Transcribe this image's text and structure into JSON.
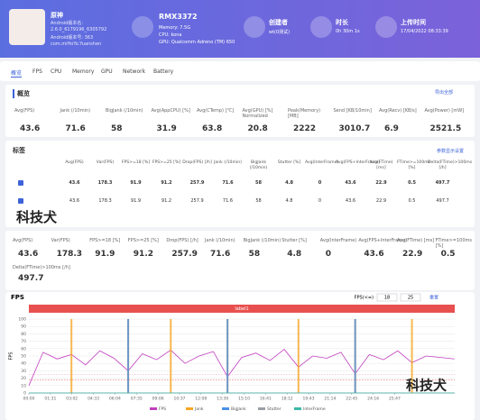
{
  "header": {
    "app": {
      "lines": [
        "原神",
        "Android版本名:",
        "2.6.0_6179196_6305792",
        "Android版本号: 363",
        "com.miHoYo.Yuanshen"
      ]
    },
    "device": {
      "model": "RMX3372",
      "lines": [
        "Memory: 7.5G",
        "CPU: kona",
        "GPU: Qualcomm Adreno (TM) 650"
      ]
    },
    "creator": {
      "label": "创建者",
      "value": "wt(0测试)"
    },
    "duration": {
      "label": "时长",
      "value": "0h 30m 1s"
    },
    "upload": {
      "label": "上传时间",
      "value": "17/04/2022 08:33:39"
    }
  },
  "tabs": [
    "概览",
    "FPS",
    "CPU",
    "Memory",
    "GPU",
    "Network",
    "Battery"
  ],
  "overview": {
    "title": "概览",
    "export": "导出全部",
    "metrics": [
      {
        "label": "Avg(FPS)",
        "value": 43.6
      },
      {
        "label": "Jank (/10min)",
        "value": 71.6
      },
      {
        "label": "BigJank (/10min)",
        "value": 58
      },
      {
        "label": "Avg(AppCPU) [%]",
        "value": 31.9
      },
      {
        "label": "Avg(CTemp) [℃]",
        "value": 63.8
      },
      {
        "label": "Avg(GPU) [%] Normalized",
        "value": 20.8
      },
      {
        "label": "Peak(Memory) [MB]",
        "value": 2222
      },
      {
        "label": "Send [KB/10min]",
        "value": 3010.7
      },
      {
        "label": "Avg(Recv) [KB/s]",
        "value": 6.9
      },
      {
        "label": "Avg(Power) [mW]",
        "value": 2521.5
      }
    ]
  },
  "tags": {
    "title": "标签",
    "link": "参数显示设置",
    "columns": [
      "Avg(FPS)",
      "Var(FPS)",
      "FPS>=18 [%]",
      "FPS>=25 [%]",
      "Drop(FPS) [/h]",
      "Jank (/10min)",
      "BigJank (/10min)",
      "Stutter [%]",
      "Avg(InterFrame)",
      "Avg(FPS+InterFrame)",
      "Avg(FTime) [ms]",
      "FTime>=100ms [%]",
      "Delta(FTime)>100ms [/h]"
    ],
    "rows": [
      [
        43.6,
        178.3,
        91.9,
        91.2,
        257.9,
        71.6,
        58,
        4.8,
        0,
        43.6,
        22.9,
        0.5,
        497.7
      ],
      [
        43.6,
        178.3,
        91.9,
        91.2,
        257.9,
        71.6,
        58,
        4.8,
        0,
        43.6,
        22.9,
        0.5,
        497.7
      ]
    ]
  },
  "summary": [
    {
      "label": "Avg(FPS)",
      "value": 43.6
    },
    {
      "label": "Var(FPS)",
      "value": 178.3
    },
    {
      "label": "FPS>=18 [%]",
      "value": 91.9
    },
    {
      "label": "FPS>=25 [%]",
      "value": 91.2
    },
    {
      "label": "Drop(FPS) [/h]",
      "value": 257.9
    },
    {
      "label": "Jank (/10min)",
      "value": 71.6
    },
    {
      "label": "BigJank (/10min)",
      "value": 58
    },
    {
      "label": "Stutter [%]",
      "value": 4.8
    },
    {
      "label": "Avg(InterFrame)",
      "value": 0
    },
    {
      "label": "Avg(FPS+InterFrame)",
      "value": 43.6
    },
    {
      "label": "Avg(FTime) [ms]",
      "value": 22.9
    },
    {
      "label": "FTime>=100ms [%]",
      "value": 0.5
    },
    {
      "label": "Delta(FTime)>100ms [/h]",
      "value": 497.7
    }
  ],
  "watermark": "科技犬",
  "chart_data": {
    "type": "line",
    "title": "FPS",
    "y_label": "FPS",
    "band_label": "label1",
    "threshold_label": "FPS(<=)",
    "thresholds": [
      18,
      25
    ],
    "reset": "重置",
    "x": [
      0,
      60,
      120,
      180,
      240,
      300,
      360,
      420,
      480,
      540,
      600,
      660,
      720,
      780,
      840,
      900,
      960,
      1020,
      1080,
      1140,
      1200,
      1260,
      1320,
      1380,
      1440,
      1500,
      1560,
      1620,
      1680,
      1740,
      1800
    ],
    "series": [
      {
        "name": "FPS",
        "color": "#c13fbf",
        "values": [
          10,
          55,
          46,
          52,
          38,
          57,
          47,
          30,
          53,
          45,
          58,
          40,
          50,
          56,
          22,
          48,
          54,
          44,
          59,
          35,
          50,
          47,
          55,
          26,
          52,
          45,
          57,
          41,
          50,
          48,
          46
        ]
      },
      {
        "name": "Jank",
        "color": "#f5a623",
        "axis": "y2",
        "values": [
          0,
          0,
          0,
          1,
          0,
          0,
          0,
          1,
          0,
          0,
          1,
          0,
          0,
          0,
          1,
          0,
          0,
          0,
          0,
          1,
          0,
          0,
          0,
          1,
          0,
          0,
          0,
          1,
          0,
          0,
          0
        ]
      },
      {
        "name": "BigJank",
        "color": "#4a8fe7",
        "axis": "y2",
        "values": [
          0,
          0,
          0,
          0,
          0,
          0,
          0,
          1,
          0,
          0,
          0,
          0,
          0,
          0,
          1,
          0,
          0,
          0,
          0,
          0,
          0,
          0,
          0,
          1,
          0,
          0,
          0,
          0,
          0,
          0,
          0
        ]
      },
      {
        "name": "Stutter",
        "color": "#9aa0a6",
        "values": [
          0,
          0,
          0,
          0,
          0,
          0,
          0,
          0,
          0,
          0,
          0,
          0,
          0,
          0,
          0,
          0,
          0,
          0,
          0,
          0,
          0,
          0,
          0,
          0,
          0,
          0,
          0,
          0,
          0,
          0,
          0
        ]
      },
      {
        "name": "InterFrame",
        "color": "#3bb9a8",
        "values": [
          0,
          0,
          0,
          0,
          0,
          0,
          0,
          0,
          0,
          0,
          0,
          0,
          0,
          0,
          0,
          0,
          0,
          0,
          0,
          0,
          0,
          0,
          0,
          0,
          0,
          0,
          0,
          0,
          0,
          0,
          0
        ]
      }
    ],
    "xlim": [
      0,
      1801
    ],
    "xticks": [
      {
        "value": 0,
        "label": "00:00"
      },
      {
        "value": 91,
        "label": "01:31"
      },
      {
        "value": 182,
        "label": "03:02"
      },
      {
        "value": 273,
        "label": "04:33"
      },
      {
        "value": 364,
        "label": "06:04"
      },
      {
        "value": 455,
        "label": "07:35"
      },
      {
        "value": 546,
        "label": "09:06"
      },
      {
        "value": 637,
        "label": "10:37"
      },
      {
        "value": 728,
        "label": "12:08"
      },
      {
        "value": 819,
        "label": "13:39"
      },
      {
        "value": 910,
        "label": "15:10"
      },
      {
        "value": 1001,
        "label": "16:41"
      },
      {
        "value": 1092,
        "label": "18:12"
      },
      {
        "value": 1183,
        "label": "19:43"
      },
      {
        "value": 1274,
        "label": "21:14"
      },
      {
        "value": 1365,
        "label": "22:45"
      },
      {
        "value": 1456,
        "label": "24:16"
      },
      {
        "value": 1547,
        "label": "25:47"
      }
    ],
    "ylim": [
      0,
      100
    ],
    "yticks": [
      0,
      10,
      20,
      30,
      40,
      50,
      60,
      70,
      80,
      90,
      100
    ],
    "y2lim": [
      0,
      1
    ],
    "grid": true
  }
}
